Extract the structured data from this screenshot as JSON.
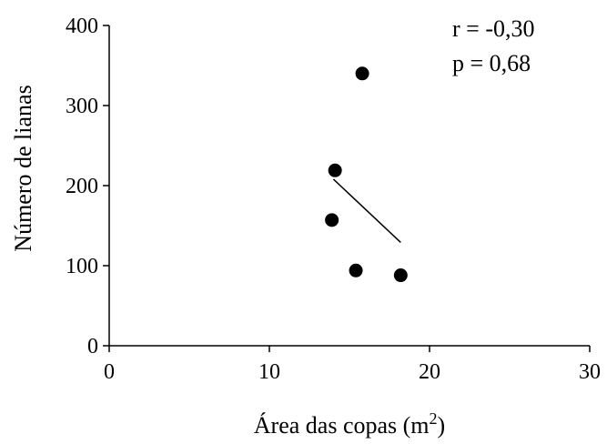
{
  "chart_data": {
    "type": "scatter",
    "title": "",
    "xlabel": "Área das copas (m",
    "xlabel_sup": "2",
    "xlabel_suffix": ")",
    "ylabel": "Número de lianas",
    "xlim": [
      0,
      30
    ],
    "ylim": [
      0,
      400
    ],
    "x_ticks": [
      0,
      10,
      20,
      30
    ],
    "y_ticks": [
      0,
      100,
      200,
      300,
      400
    ],
    "x_tick_labels": [
      "0",
      "10",
      "20",
      "30"
    ],
    "y_tick_labels": [
      "0",
      "100",
      "200",
      "300",
      "400"
    ],
    "points": [
      {
        "x": 15.8,
        "y": 340
      },
      {
        "x": 14.1,
        "y": 219
      },
      {
        "x": 13.9,
        "y": 157
      },
      {
        "x": 15.4,
        "y": 94
      },
      {
        "x": 18.2,
        "y": 88
      }
    ],
    "trendline": {
      "x": [
        14.0,
        18.2
      ],
      "y": [
        208,
        129
      ]
    },
    "annotations": [
      "r = -0,30",
      "p = 0,68"
    ],
    "grid": false,
    "marker_color": "#000000"
  }
}
